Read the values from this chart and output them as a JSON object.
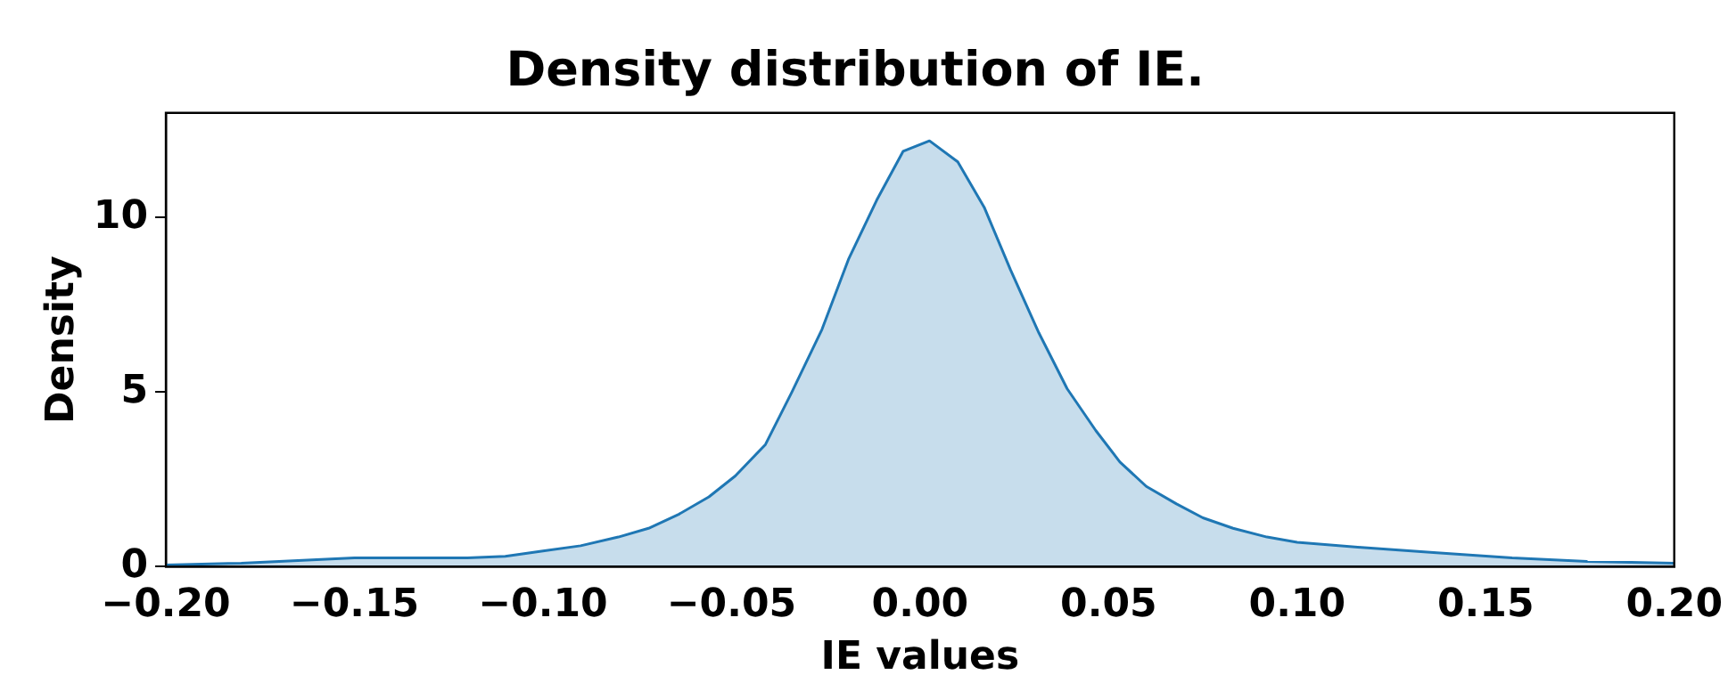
{
  "chart_data": {
    "type": "area",
    "title": "Density distribution of IE.",
    "xlabel": "IE values",
    "ylabel": "Density",
    "x": [
      -0.2,
      -0.18,
      -0.16,
      -0.15,
      -0.13,
      -0.12,
      -0.11,
      -0.1,
      -0.09,
      -0.08,
      -0.072,
      -0.064,
      -0.056,
      -0.049,
      -0.041,
      -0.034,
      -0.026,
      -0.019,
      -0.0115,
      -0.0045,
      0.0025,
      0.01,
      0.017,
      0.024,
      0.0315,
      0.039,
      0.0466,
      0.053,
      0.06,
      0.068,
      0.075,
      0.083,
      0.092,
      0.1,
      0.117,
      0.137,
      0.157,
      0.177,
      0.2
    ],
    "series": [
      {
        "color": "#1f77b4",
        "values": [
          0.05,
          0.1,
          0.2,
          0.25,
          0.25,
          0.25,
          0.3,
          0.45,
          0.6,
          0.85,
          1.1,
          1.5,
          2.0,
          2.6,
          3.5,
          5.0,
          6.8,
          8.8,
          10.5,
          11.9,
          12.2,
          11.6,
          10.3,
          8.5,
          6.7,
          5.1,
          3.9,
          3.0,
          2.3,
          1.8,
          1.4,
          1.1,
          0.85,
          0.7,
          0.55,
          0.4,
          0.25,
          0.15,
          0.1
        ]
      }
    ],
    "xlim": [
      -0.2,
      0.2
    ],
    "ylim": [
      0,
      13
    ],
    "xticks": [
      {
        "value": -0.2,
        "label": "−0.20"
      },
      {
        "value": -0.15,
        "label": "−0.15"
      },
      {
        "value": -0.1,
        "label": "−0.10"
      },
      {
        "value": -0.05,
        "label": "−0.05"
      },
      {
        "value": 0,
        "label": "0.00"
      },
      {
        "value": 0.05,
        "label": "0.05"
      },
      {
        "value": 0.1,
        "label": "0.10"
      },
      {
        "value": 0.15,
        "label": "0.15"
      },
      {
        "value": 0.2,
        "label": "0.20"
      }
    ],
    "yticks": [
      0,
      5,
      10
    ],
    "grid": false,
    "legend": false,
    "marker": "none"
  }
}
